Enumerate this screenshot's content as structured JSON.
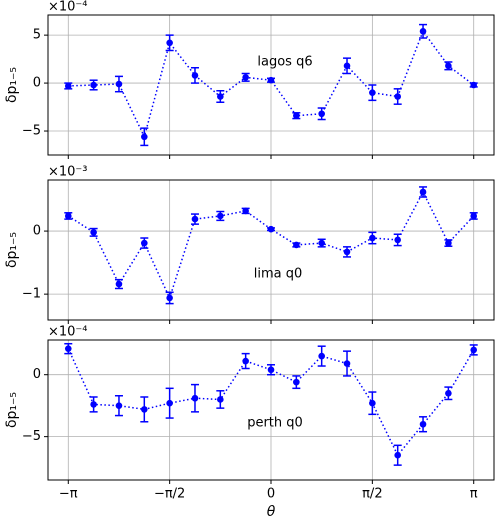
{
  "chart_data": [
    {
      "type": "errorbar",
      "color": "#0000ff",
      "grid": true,
      "ylabel": "δp₁₋₅",
      "offset_label": "×10⁻⁴",
      "annotation": "lagos q6",
      "x": [
        -3.1416,
        -2.7489,
        -2.3562,
        -1.9635,
        -1.5708,
        -1.1781,
        -0.7854,
        -0.3927,
        0,
        0.3927,
        0.7854,
        1.1781,
        1.5708,
        1.9635,
        2.3562,
        2.7489,
        3.1416
      ],
      "values": [
        -0.3,
        -0.2,
        -0.1,
        -5.6,
        4.2,
        0.8,
        -1.4,
        0.6,
        0.3,
        -3.4,
        -3.2,
        1.8,
        -1.0,
        -1.4,
        5.4,
        1.8,
        -0.2
      ],
      "errors": [
        0.3,
        0.5,
        0.8,
        0.9,
        0.8,
        0.8,
        0.6,
        0.4,
        0.2,
        0.3,
        0.6,
        0.8,
        0.8,
        0.8,
        0.7,
        0.4,
        0.2
      ],
      "xlim": [
        -3.456,
        3.456
      ],
      "xticks": [
        -3.1416,
        -1.5708,
        0,
        1.5708,
        3.1416
      ],
      "xticklabels": false,
      "ylim": [
        -7.5,
        7.1
      ],
      "yticks": [
        {
          "value": -5,
          "label": "−5"
        },
        0,
        5
      ]
    },
    {
      "type": "errorbar",
      "color": "#0000ff",
      "grid": true,
      "ylabel": "δp₁₋₅",
      "offset_label": "×10⁻³",
      "annotation": "lima q0",
      "x": [
        -3.1416,
        -2.7489,
        -2.3562,
        -1.9635,
        -1.5708,
        -1.1781,
        -0.7854,
        -0.3927,
        0,
        0.3927,
        0.7854,
        1.1781,
        1.5708,
        1.9635,
        2.3562,
        2.7489,
        3.1416
      ],
      "values": [
        0.24,
        -0.02,
        -0.84,
        -0.19,
        -1.06,
        0.19,
        0.24,
        0.32,
        0.03,
        -0.22,
        -0.19,
        -0.33,
        -0.11,
        -0.14,
        0.62,
        -0.19,
        0.24
      ],
      "errors": [
        0.05,
        0.06,
        0.07,
        0.08,
        0.09,
        0.08,
        0.07,
        0.04,
        0.02,
        0.03,
        0.06,
        0.08,
        0.09,
        0.09,
        0.08,
        0.05,
        0.05
      ],
      "xlim": [
        -3.456,
        3.456
      ],
      "xticks": [
        -3.1416,
        -1.5708,
        0,
        1.5708,
        3.1416
      ],
      "xticklabels": false,
      "ylim": [
        -1.41,
        0.81
      ],
      "yticks": [
        {
          "value": -1,
          "label": "−1"
        },
        0
      ]
    },
    {
      "type": "errorbar",
      "color": "#0000ff",
      "grid": true,
      "ylabel": "δp₁₋₅",
      "offset_label": "×10⁻⁴",
      "annotation": "perth q0",
      "xlabel": "θ",
      "x": [
        -3.1416,
        -2.7489,
        -2.3562,
        -1.9635,
        -1.5708,
        -1.1781,
        -0.7854,
        -0.3927,
        0,
        0.3927,
        0.7854,
        1.1781,
        1.5708,
        1.9635,
        2.3562,
        2.7489,
        3.1416
      ],
      "values": [
        2.1,
        -2.4,
        -2.5,
        -2.8,
        -2.3,
        -1.9,
        -2.0,
        1.1,
        0.4,
        -0.6,
        1.5,
        0.9,
        -2.3,
        -6.5,
        -4.0,
        -1.5,
        2.0
      ],
      "errors": [
        0.4,
        0.6,
        0.8,
        1.0,
        1.2,
        1.1,
        0.7,
        0.6,
        0.4,
        0.5,
        0.8,
        1.0,
        0.9,
        0.8,
        0.6,
        0.5,
        0.4
      ],
      "xlim": [
        -3.456,
        3.456
      ],
      "xticks": [
        {
          "value": -3.1416,
          "label": "−π"
        },
        {
          "value": -1.5708,
          "label": "−π/2"
        },
        0,
        {
          "value": 1.5708,
          "label": "π/2"
        },
        {
          "value": 3.1416,
          "label": "π"
        }
      ],
      "xticklabels": true,
      "ylim": [
        -8.5,
        2.8
      ],
      "yticks": [
        {
          "value": -5,
          "label": "−5"
        },
        0
      ]
    }
  ]
}
